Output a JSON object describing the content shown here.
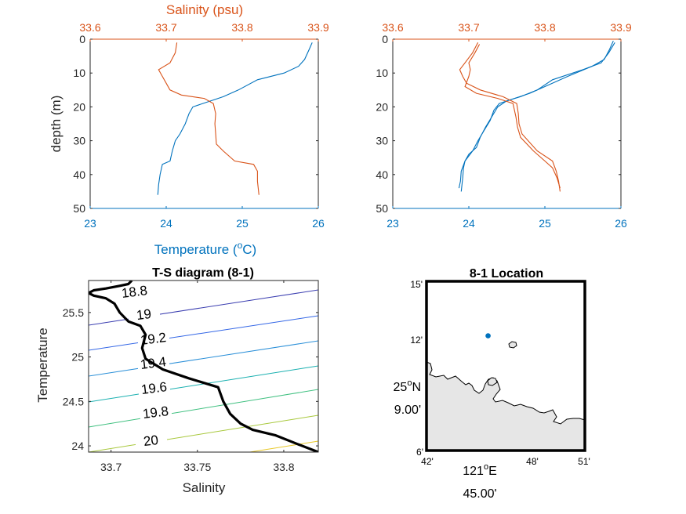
{
  "colors": {
    "temperature": "#0072BD",
    "salinity": "#D95319",
    "axis": "#262626",
    "ts_line": "#000000",
    "land": "#E6E6E6",
    "station": "#0072BD"
  },
  "chart_data": [
    {
      "type": "line",
      "ylabel": "depth (m)",
      "xlabel_bottom": "Temperature (",
      "xlabel_bottom_unit": "o",
      "xlabel_bottom_tail": "C)",
      "xlabel_top": "Salinity (psu)",
      "ylim": [
        0,
        50
      ],
      "yticks": [
        "0",
        "10",
        "20",
        "30",
        "40",
        "50"
      ],
      "xlim_temperature": [
        23,
        26
      ],
      "xticks_temperature": [
        "23",
        "24",
        "25",
        "26"
      ],
      "xlim_salinity": [
        33.6,
        33.9
      ],
      "xticks_salinity": [
        "33.6",
        "33.7",
        "33.8",
        "33.9"
      ],
      "series": [
        {
          "axis": "temperature",
          "points": [
            [
              25.92,
              1
            ],
            [
              25.88,
              3
            ],
            [
              25.82,
              6
            ],
            [
              25.74,
              8
            ],
            [
              25.55,
              10
            ],
            [
              25.2,
              12
            ],
            [
              24.95,
              15
            ],
            [
              24.75,
              17
            ],
            [
              24.55,
              18.5
            ],
            [
              24.35,
              20
            ],
            [
              24.3,
              22
            ],
            [
              24.25,
              25
            ],
            [
              24.18,
              28
            ],
            [
              24.12,
              30
            ],
            [
              24.08,
              33
            ],
            [
              24.05,
              36
            ],
            [
              23.95,
              37
            ],
            [
              23.92,
              40
            ],
            [
              23.9,
              43
            ],
            [
              23.89,
              46
            ]
          ]
        },
        {
          "axis": "salinity",
          "points": [
            [
              33.714,
              1
            ],
            [
              33.712,
              4
            ],
            [
              33.705,
              7
            ],
            [
              33.69,
              9
            ],
            [
              33.695,
              11
            ],
            [
              33.7,
              13
            ],
            [
              33.705,
              15
            ],
            [
              33.72,
              16.5
            ],
            [
              33.75,
              17.5
            ],
            [
              33.762,
              19
            ],
            [
              33.765,
              22
            ],
            [
              33.764,
              25
            ],
            [
              33.765,
              28
            ],
            [
              33.766,
              31
            ],
            [
              33.775,
              33
            ],
            [
              33.79,
              36
            ],
            [
              33.815,
              37
            ],
            [
              33.82,
              39
            ],
            [
              33.82,
              42
            ],
            [
              33.822,
              46
            ]
          ]
        }
      ]
    },
    {
      "type": "line",
      "ylim": [
        0,
        50
      ],
      "yticks": [
        "0",
        "10",
        "20",
        "30",
        "40",
        "50"
      ],
      "xlim_temperature": [
        23,
        26
      ],
      "xticks_temperature": [
        "23",
        "24",
        "25",
        "26"
      ],
      "xlim_salinity": [
        33.6,
        33.9
      ],
      "xticks_salinity": [
        "33.6",
        "33.7",
        "33.8",
        "33.9"
      ],
      "series": [
        {
          "axis": "temperature",
          "points": [
            [
              25.9,
              0.5
            ],
            [
              25.85,
              3
            ],
            [
              25.78,
              6
            ],
            [
              25.62,
              8
            ],
            [
              25.3,
              11
            ],
            [
              25.0,
              14
            ],
            [
              24.8,
              16
            ],
            [
              24.6,
              17.5
            ],
            [
              24.4,
              19
            ],
            [
              24.33,
              21
            ],
            [
              24.28,
              24
            ],
            [
              24.2,
              27
            ],
            [
              24.12,
              30
            ],
            [
              24.05,
              33
            ],
            [
              23.95,
              36
            ],
            [
              23.93,
              38
            ],
            [
              23.92,
              41
            ],
            [
              23.9,
              45
            ]
          ]
        },
        {
          "axis": "temperature",
          "points": [
            [
              25.92,
              1
            ],
            [
              25.84,
              4
            ],
            [
              25.74,
              7
            ],
            [
              25.5,
              9
            ],
            [
              25.1,
              12
            ],
            [
              24.9,
              15
            ],
            [
              24.68,
              17
            ],
            [
              24.5,
              18.2
            ],
            [
              24.38,
              20
            ],
            [
              24.3,
              23
            ],
            [
              24.22,
              26
            ],
            [
              24.15,
              29
            ],
            [
              24.1,
              32
            ],
            [
              24.0,
              34
            ],
            [
              23.95,
              36
            ],
            [
              23.9,
              39
            ],
            [
              23.89,
              42
            ],
            [
              23.87,
              44
            ]
          ]
        },
        {
          "axis": "salinity",
          "points": [
            [
              33.712,
              1
            ],
            [
              33.705,
              4
            ],
            [
              33.695,
              7
            ],
            [
              33.688,
              9
            ],
            [
              33.692,
              11
            ],
            [
              33.697,
              13
            ],
            [
              33.715,
              15
            ],
            [
              33.745,
              17
            ],
            [
              33.763,
              19
            ],
            [
              33.765,
              22
            ],
            [
              33.766,
              25
            ],
            [
              33.77,
              28
            ],
            [
              33.79,
              33
            ],
            [
              33.81,
              36
            ],
            [
              33.815,
              39
            ],
            [
              33.818,
              42
            ],
            [
              33.82,
              45
            ]
          ]
        },
        {
          "axis": "salinity",
          "points": [
            [
              33.714,
              1.5
            ],
            [
              33.708,
              4
            ],
            [
              33.7,
              7
            ],
            [
              33.702,
              9
            ],
            [
              33.7,
              11
            ],
            [
              33.695,
              14
            ],
            [
              33.71,
              16
            ],
            [
              33.738,
              17.5
            ],
            [
              33.758,
              19
            ],
            [
              33.762,
              23
            ],
            [
              33.764,
              26
            ],
            [
              33.768,
              29
            ],
            [
              33.785,
              33
            ],
            [
              33.8,
              36
            ],
            [
              33.81,
              38
            ],
            [
              33.816,
              41
            ],
            [
              33.82,
              44
            ]
          ]
        }
      ]
    },
    {
      "type": "line",
      "title": "T-S diagram (8-1)",
      "xlabel": "Salinity",
      "ylabel": "Temperature",
      "xlim": [
        33.687,
        33.82
      ],
      "ylim": [
        23.93,
        25.86
      ],
      "xticks": [
        "33.7",
        "33.75",
        "33.8"
      ],
      "yticks": [
        "24",
        "24.5",
        "25",
        "25.5"
      ],
      "contour_levels": [
        "18.8",
        "19",
        "19.2",
        "19.4",
        "19.6",
        "19.8",
        "20"
      ],
      "contour_colors": [
        "#3A3DB0",
        "#3366E6",
        "#2A8FD8",
        "#1AB0B0",
        "#40C080",
        "#A8C83C",
        "#E8C828"
      ],
      "series": [
        {
          "name": "",
          "points": [
            [
              33.712,
              25.86
            ],
            [
              33.71,
              25.82
            ],
            [
              33.705,
              25.8
            ],
            [
              33.697,
              25.77
            ],
            [
              33.69,
              25.75
            ],
            [
              33.687,
              25.72
            ],
            [
              33.69,
              25.69
            ],
            [
              33.697,
              25.66
            ],
            [
              33.702,
              25.6
            ],
            [
              33.705,
              25.5
            ],
            [
              33.71,
              25.4
            ],
            [
              33.717,
              25.35
            ],
            [
              33.72,
              25.25
            ],
            [
              33.718,
              25.1
            ],
            [
              33.72,
              24.98
            ],
            [
              33.73,
              24.86
            ],
            [
              33.745,
              24.76
            ],
            [
              33.762,
              24.66
            ],
            [
              33.765,
              24.5
            ],
            [
              33.769,
              24.36
            ],
            [
              33.775,
              24.25
            ],
            [
              33.782,
              24.18
            ],
            [
              33.795,
              24.12
            ],
            [
              33.808,
              24.02
            ],
            [
              33.82,
              23.93
            ]
          ]
        }
      ]
    },
    {
      "type": "map",
      "title": "8-1 Location",
      "lat_tick_labels": [
        "15'",
        "12'",
        "9.00'",
        "6'"
      ],
      "lat_degree_label": "25",
      "lat_degree_sup": "o",
      "lat_degree_suffix": "N",
      "lon_tick_labels": [
        "42'",
        "45.00'",
        "48'",
        "51'"
      ],
      "lon_degree_label": "121",
      "lon_degree_sup": "o",
      "lon_degree_suffix": "E",
      "xlim": [
        42,
        51
      ],
      "ylim": [
        6,
        15
      ],
      "station": {
        "lon": 45.5,
        "lat": 12.1
      }
    }
  ]
}
